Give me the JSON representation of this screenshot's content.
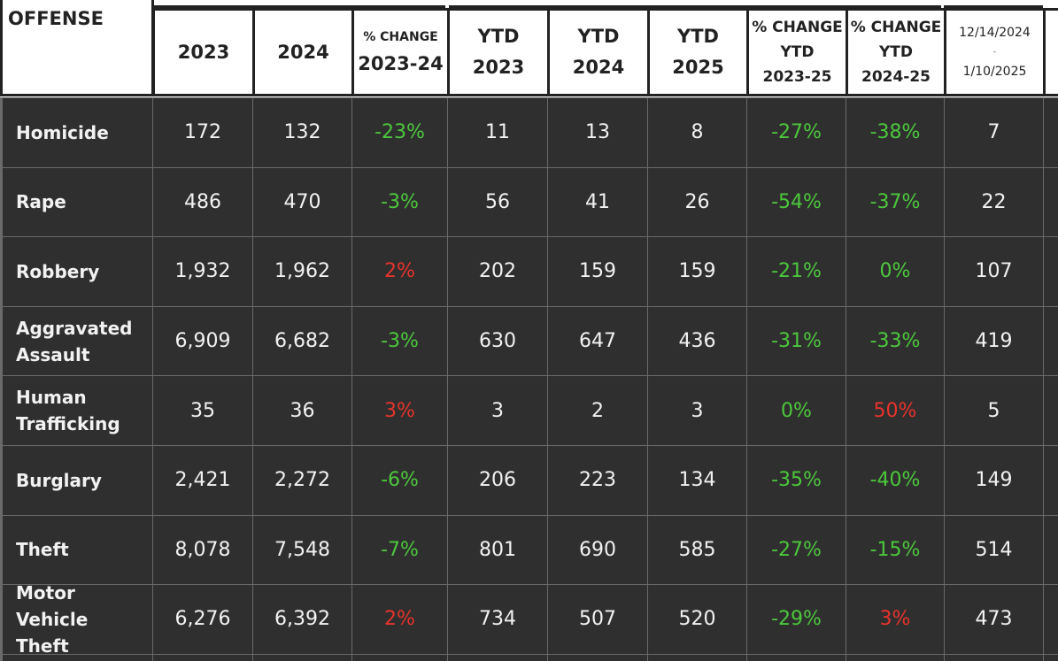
{
  "header": {
    "offense": "OFFENSE",
    "columns": [
      [
        "2023"
      ],
      [
        "2024"
      ],
      [
        "% CHANGE",
        "2023-24"
      ],
      [
        "YTD",
        "2023"
      ],
      [
        "YTD",
        "2024"
      ],
      [
        "YTD",
        "2025"
      ],
      [
        "% CHANGE",
        "YTD",
        "2023-25"
      ],
      [
        "% CHANGE",
        "YTD",
        "2024-25"
      ],
      [
        "12/14/2024",
        "-",
        "1/10/2025"
      ]
    ]
  },
  "colors": {
    "decrease": "#4cc83c",
    "increase": "#e8332c"
  },
  "rows": [
    {
      "offense": "Homicide",
      "cells": [
        "172",
        "132",
        "-23%",
        "11",
        "13",
        "8",
        "-27%",
        "-38%",
        "7"
      ]
    },
    {
      "offense": "Rape",
      "cells": [
        "486",
        "470",
        "-3%",
        "56",
        "41",
        "26",
        "-54%",
        "-37%",
        "22"
      ]
    },
    {
      "offense": "Robbery",
      "cells": [
        "1,932",
        "1,962",
        "2%",
        "202",
        "159",
        "159",
        "-21%",
        "0%",
        "107"
      ]
    },
    {
      "offense": "Aggravated Assault",
      "cells": [
        "6,909",
        "6,682",
        "-3%",
        "630",
        "647",
        "436",
        "-31%",
        "-33%",
        "419"
      ]
    },
    {
      "offense": "Human Trafficking",
      "cells": [
        "35",
        "36",
        "3%",
        "3",
        "2",
        "3",
        "0%",
        "50%",
        "5"
      ]
    },
    {
      "offense": "Burglary",
      "cells": [
        "2,421",
        "2,272",
        "-6%",
        "206",
        "223",
        "134",
        "-35%",
        "-40%",
        "149"
      ]
    },
    {
      "offense": "Theft",
      "cells": [
        "8,078",
        "7,548",
        "-7%",
        "801",
        "690",
        "585",
        "-27%",
        "-15%",
        "514"
      ]
    },
    {
      "offense": "Motor Vehicle Theft",
      "cells": [
        "6,276",
        "6,392",
        "2%",
        "734",
        "507",
        "520",
        "-29%",
        "3%",
        "473"
      ]
    }
  ]
}
